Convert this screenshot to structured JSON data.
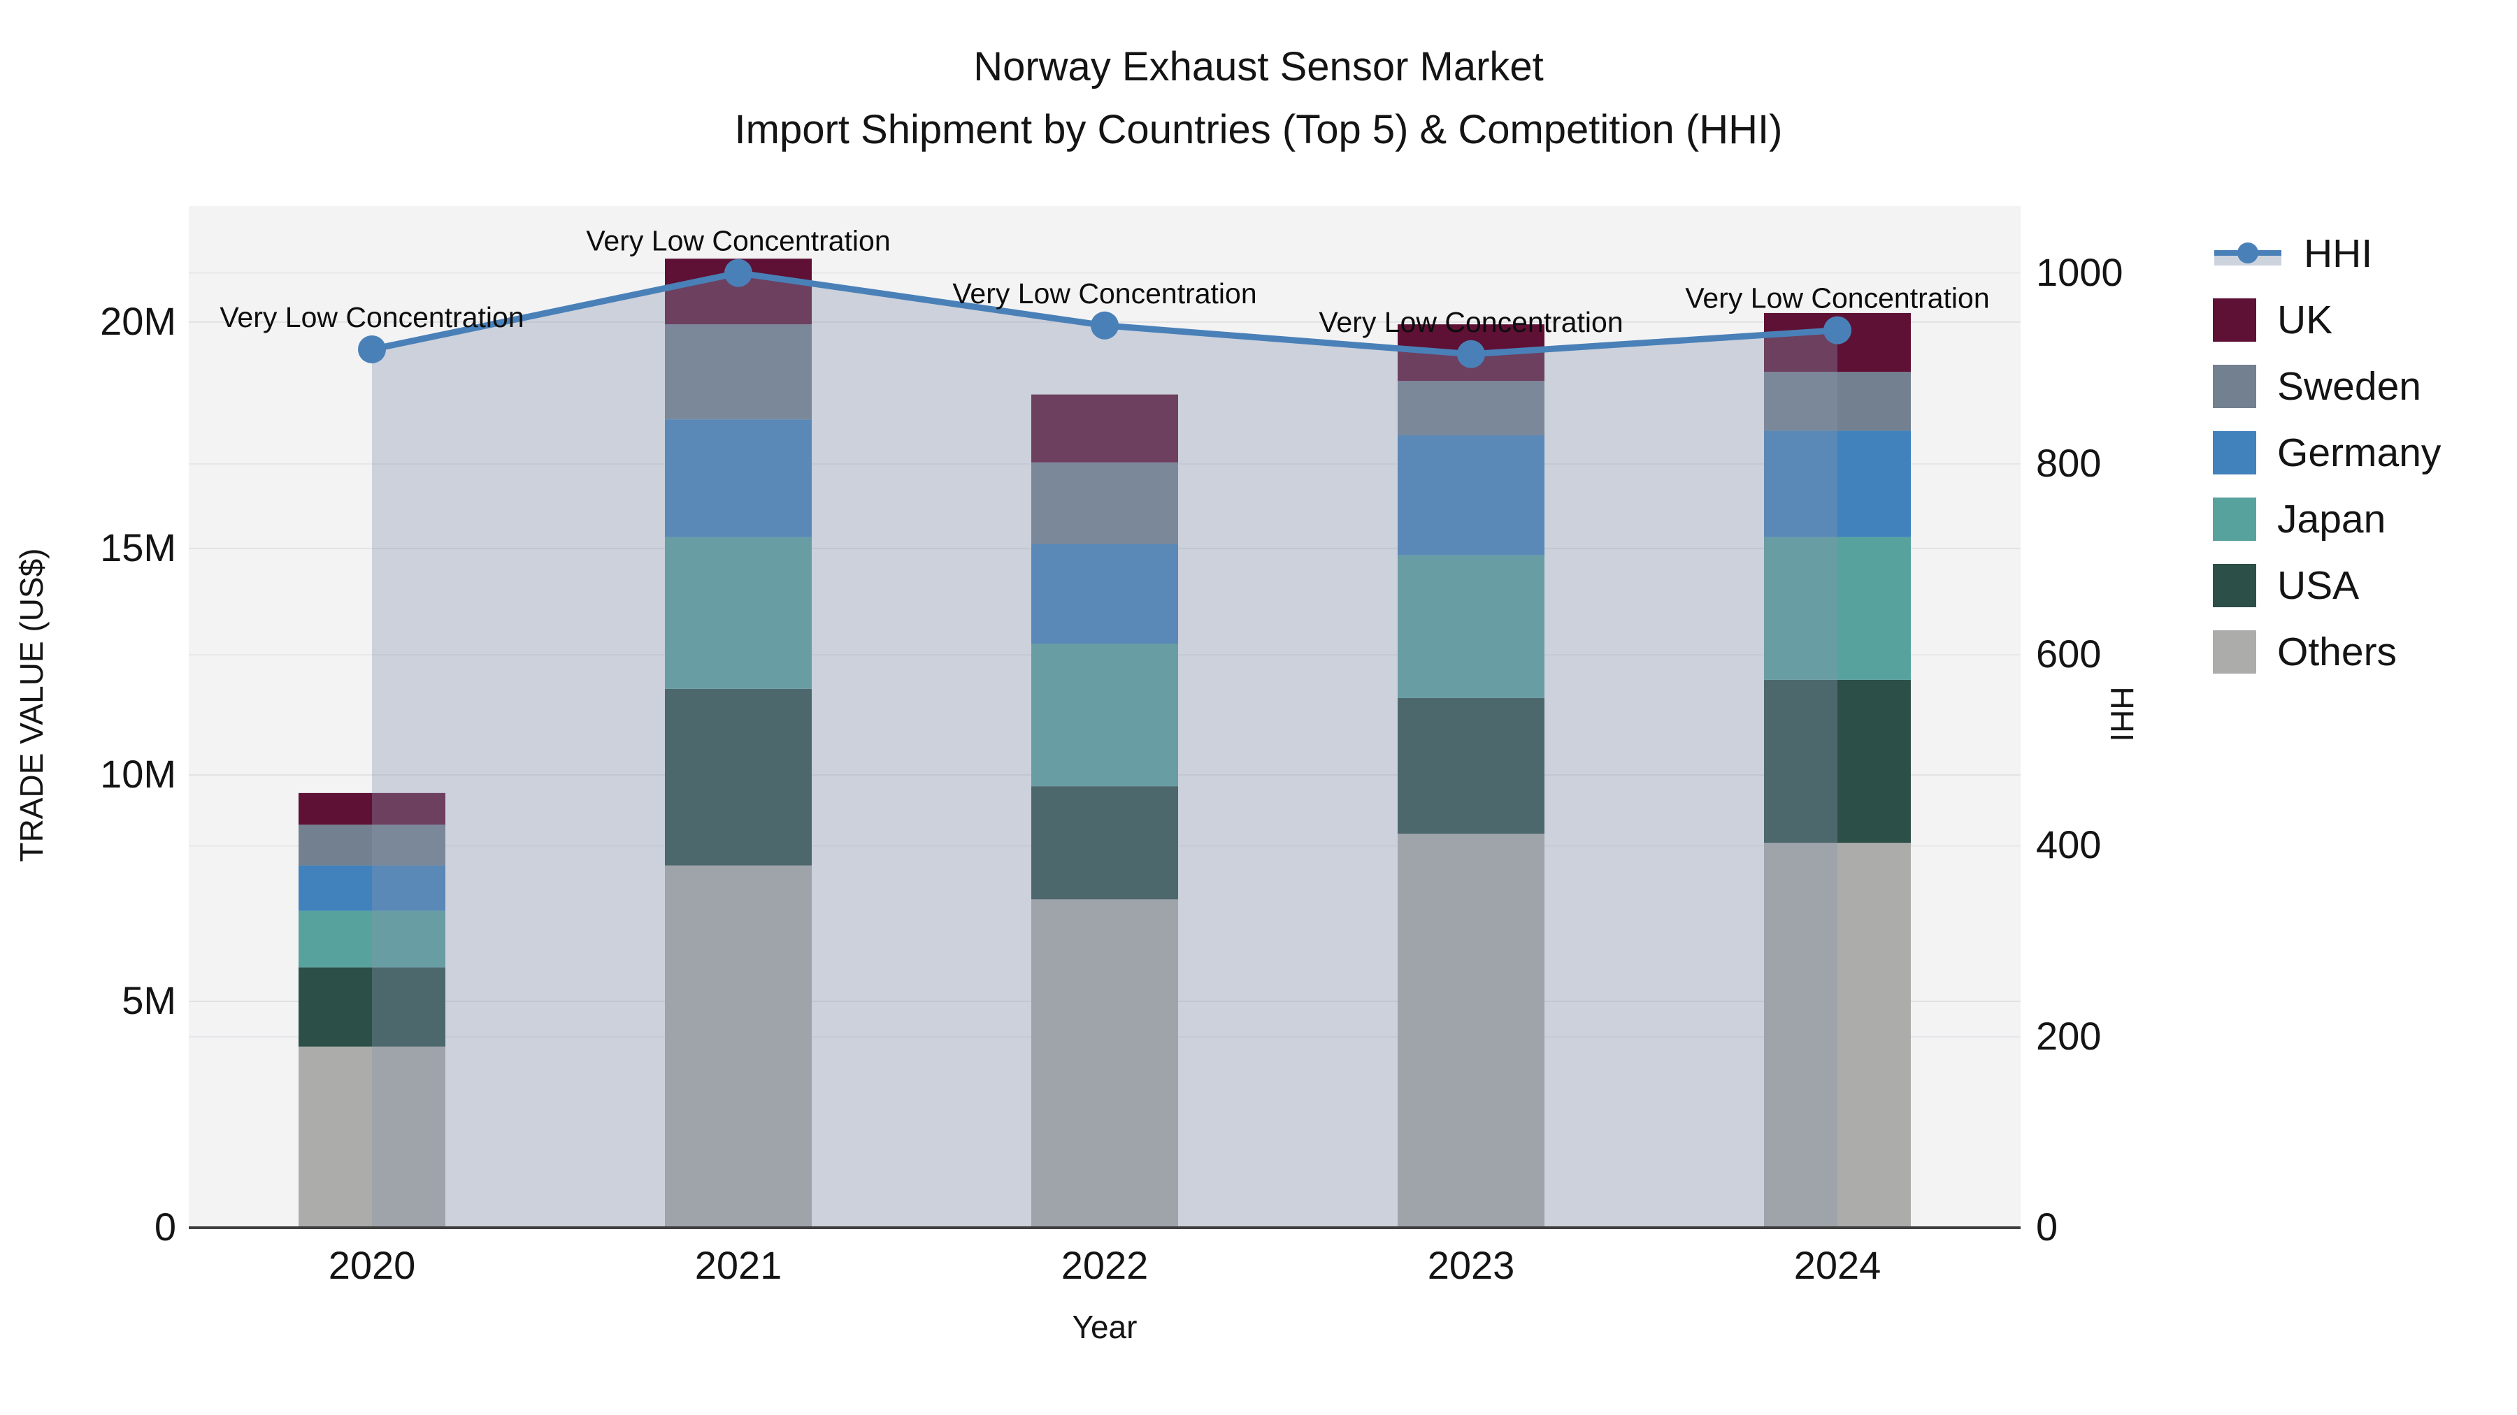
{
  "title": {
    "line1": "Norway Exhaust Sensor Market",
    "line2": "Import Shipment by Countries (Top 5) & Competition (HHI)"
  },
  "axes": {
    "x": {
      "label": "Year",
      "tick_labels": [
        "2020",
        "2021",
        "2022",
        "2023",
        "2024"
      ]
    },
    "y_left": {
      "label": "TRADE VALUE (US$)",
      "tick_labels": [
        "0",
        "5M",
        "10M",
        "15M",
        "20M"
      ],
      "tick_values": [
        0,
        5,
        10,
        15,
        20
      ]
    },
    "y_right": {
      "label": "HHI",
      "tick_labels": [
        "0",
        "200",
        "400",
        "600",
        "800",
        "1000"
      ],
      "tick_values": [
        0,
        200,
        400,
        600,
        800,
        1000
      ]
    }
  },
  "legend": {
    "items": [
      {
        "label": "HHI",
        "type": "line",
        "color": "#4a80b8",
        "fill_color": "#cdd3dc"
      },
      {
        "label": "UK",
        "type": "bar",
        "color": "#5e1134"
      },
      {
        "label": "Sweden",
        "type": "bar",
        "color": "#72808f"
      },
      {
        "label": "Germany",
        "type": "bar",
        "color": "#4181bc"
      },
      {
        "label": "Japan",
        "type": "bar",
        "color": "#58a29e"
      },
      {
        "label": "USA",
        "type": "bar",
        "color": "#2c4f48"
      },
      {
        "label": "Others",
        "type": "bar",
        "color": "#acadaa"
      }
    ]
  },
  "chart_data": {
    "type": "bar",
    "subtype": "stacked-bars-with-line-overlay",
    "title": "Norway Exhaust Sensor Market — Import Shipment by Countries (Top 5) & Competition (HHI)",
    "xlabel": "Year",
    "ylabel_left": "TRADE VALUE (US$)",
    "ylabel_right": "HHI",
    "values_in": "USD millions",
    "categories": [
      "2020",
      "2021",
      "2022",
      "2023",
      "2024"
    ],
    "series": [
      {
        "name": "Others",
        "stack_order": 1,
        "color": "#acadaa",
        "values": [
          4.0,
          8.0,
          7.25,
          8.7,
          8.5
        ]
      },
      {
        "name": "USA",
        "stack_order": 2,
        "color": "#2c4f48",
        "values": [
          1.75,
          3.9,
          2.5,
          3.0,
          3.6
        ]
      },
      {
        "name": "Japan",
        "stack_order": 3,
        "color": "#58a29e",
        "values": [
          1.25,
          3.35,
          3.15,
          3.15,
          3.15
        ]
      },
      {
        "name": "Germany",
        "stack_order": 4,
        "color": "#4181bc",
        "values": [
          1.0,
          2.6,
          2.2,
          2.65,
          2.35
        ]
      },
      {
        "name": "Sweden",
        "stack_order": 5,
        "color": "#72808f",
        "values": [
          0.9,
          2.1,
          1.8,
          1.2,
          1.3
        ]
      },
      {
        "name": "UK",
        "stack_order": 6,
        "color": "#5e1134",
        "values": [
          0.7,
          1.45,
          1.5,
          1.25,
          1.3
        ]
      }
    ],
    "stack_totals": [
      9.6,
      21.4,
      18.4,
      19.95,
      20.2
    ],
    "line": {
      "name": "HHI",
      "axis": "right",
      "color": "#4a80b8",
      "area_fill": "rgba(136,151,175,0.36)",
      "values": [
        920,
        1000,
        945,
        915,
        940
      ]
    },
    "annotations": [
      {
        "x": "2020",
        "text": "Very Low Concentration"
      },
      {
        "x": "2021",
        "text": "Very Low Concentration"
      },
      {
        "x": "2022",
        "text": "Very Low Concentration"
      },
      {
        "x": "2023",
        "text": "Very Low Concentration"
      },
      {
        "x": "2024",
        "text": "Very Low Concentration"
      }
    ],
    "ylim_left": [
      0,
      22.56
    ],
    "ylim_right": [
      0,
      1070
    ],
    "grid": true,
    "legend_position": "right"
  }
}
